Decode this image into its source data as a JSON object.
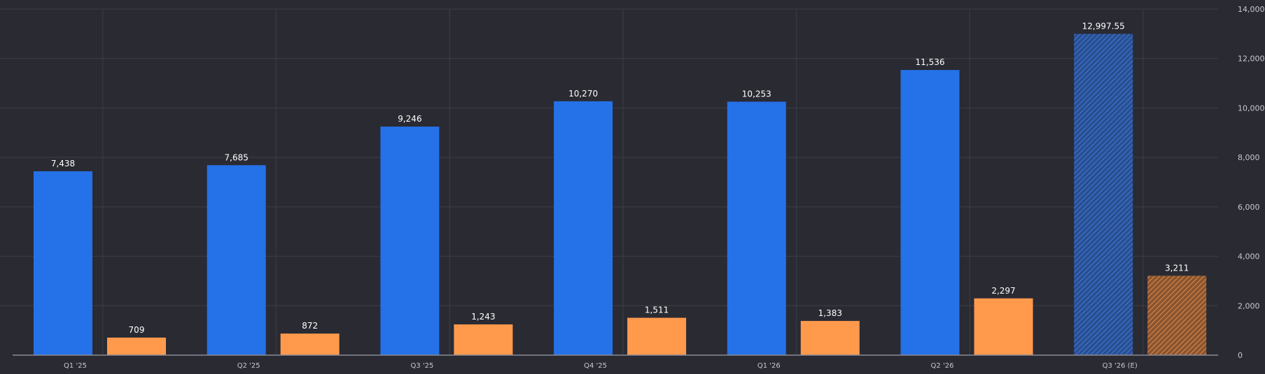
{
  "chart_data": {
    "type": "bar",
    "categories": [
      "Q1 '25",
      "Q2 '25",
      "Q3 '25",
      "Q4 '25",
      "Q1 '26",
      "Q2 '26",
      "Q3 '26 (E)"
    ],
    "series": [
      {
        "color": "#2571e8",
        "values": [
          7438,
          7685,
          9246,
          10270,
          10253,
          11536,
          12997.55
        ],
        "value_labels": [
          "7,438",
          "7,685",
          "9,246",
          "10,270",
          "10,253",
          "11,536",
          "12,997.55"
        ]
      },
      {
        "color": "#ff9a4d",
        "values": [
          709,
          872,
          1243,
          1511,
          1383,
          2297,
          3211
        ],
        "value_labels": [
          "709",
          "872",
          "1,243",
          "1,511",
          "1,383",
          "2,297",
          "3,211"
        ]
      }
    ],
    "estimated_category_index": 6,
    "estimated_style": "hatched",
    "ylim": [
      0,
      14000
    ],
    "yticks": [
      0,
      2000,
      4000,
      6000,
      8000,
      10000,
      12000,
      14000
    ],
    "ytick_labels": [
      "0",
      "2,000",
      "4,000",
      "6,000",
      "8,000",
      "10,000",
      "12,000",
      "14,000"
    ],
    "y_axis_position": "right",
    "grid": true,
    "title": "",
    "xlabel": "",
    "ylabel": ""
  },
  "colors": {
    "background": "#2a2a33",
    "grid": "#3e3e48",
    "axis": "#8a8a94",
    "text": "#c8c8d0",
    "value_text": "#ffffff",
    "series1_estimated": "#2558b0",
    "series2_estimated": "#b46a3a"
  }
}
